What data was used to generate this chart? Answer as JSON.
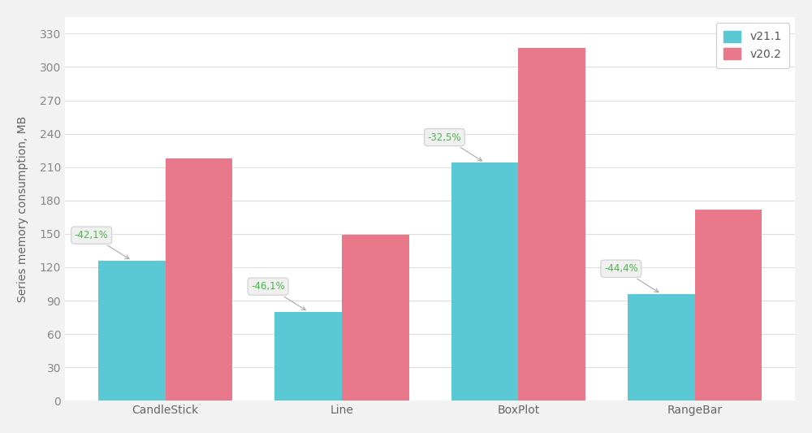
{
  "categories": [
    "CandleStick",
    "Line",
    "BoxPlot",
    "RangeBar"
  ],
  "v21_values": [
    126,
    80,
    214,
    96
  ],
  "v20_values": [
    218,
    149,
    317,
    172
  ],
  "pct_labels": [
    "-42,1%",
    "-46,1%",
    "-32,5%",
    "-44,4%"
  ],
  "v21_color": "#5BC8D5",
  "v20_color": "#E8788A",
  "bg_color": "#F2F2F2",
  "plot_bg_color": "#FFFFFF",
  "grid_color": "#DDDDDD",
  "ylabel": "Series memory consumption, MB",
  "ylim": [
    0,
    345
  ],
  "yticks": [
    0,
    30,
    60,
    90,
    120,
    150,
    180,
    210,
    240,
    270,
    300,
    330
  ],
  "legend_labels": [
    "v21.1",
    "v20.2"
  ],
  "bar_width": 0.38,
  "pct_color": "#4DB34D",
  "annotation_box_color": "#F0F0F0",
  "val_label_color_blue": "#5BC8D5",
  "val_label_color_pink": "#E8788A"
}
